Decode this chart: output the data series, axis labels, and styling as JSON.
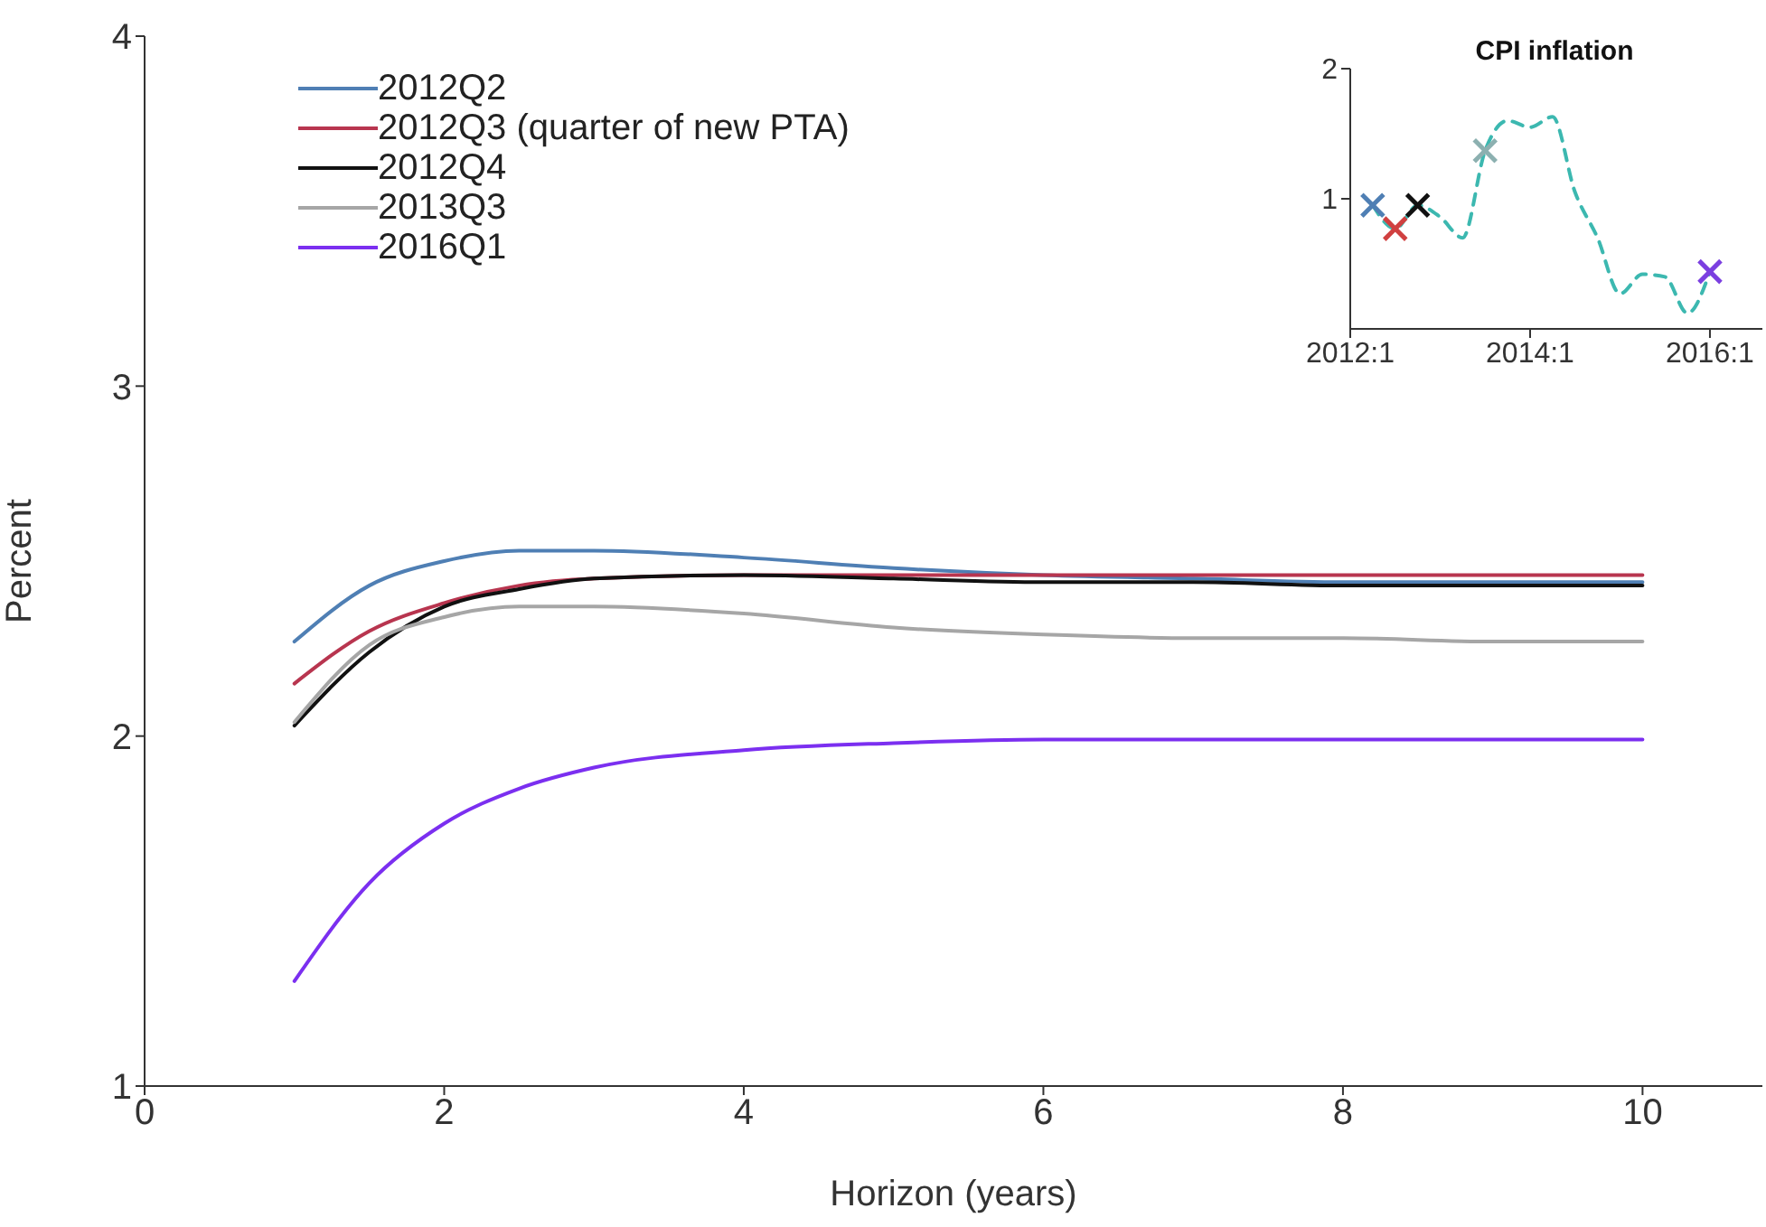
{
  "chart_data": [
    {
      "type": "line",
      "xlabel": "Horizon (years)",
      "ylabel": "Percent",
      "x": [
        1,
        1.5,
        2,
        2.5,
        3,
        4,
        5,
        6,
        7,
        8,
        9,
        10
      ],
      "xlim": [
        0,
        10.8
      ],
      "xticks": [
        0,
        2,
        4,
        6,
        8,
        10
      ],
      "ylim": [
        1,
        4
      ],
      "yticks": [
        1,
        2,
        3,
        4
      ],
      "grid": false,
      "legend": "top left",
      "marker": "none",
      "line_style": "solid",
      "series": [
        {
          "name": "2012Q2",
          "color": "#4f7fb4",
          "values": [
            2.27,
            2.43,
            2.5,
            2.53,
            2.53,
            2.51,
            2.48,
            2.46,
            2.45,
            2.44,
            2.44,
            2.44
          ]
        },
        {
          "name": "2012Q3 (quarter of new PTA)",
          "color": "#b8354f",
          "values": [
            2.15,
            2.3,
            2.38,
            2.43,
            2.45,
            2.46,
            2.46,
            2.46,
            2.46,
            2.46,
            2.46,
            2.46
          ]
        },
        {
          "name": "2012Q4",
          "color": "#111111",
          "values": [
            2.03,
            2.24,
            2.37,
            2.42,
            2.45,
            2.46,
            2.45,
            2.44,
            2.44,
            2.43,
            2.43,
            2.43
          ]
        },
        {
          "name": "2013Q3",
          "color": "#a6a6a6",
          "values": [
            2.04,
            2.26,
            2.34,
            2.37,
            2.37,
            2.35,
            2.31,
            2.29,
            2.28,
            2.28,
            2.27,
            2.27
          ]
        },
        {
          "name": "2016Q1",
          "color": "#7b2ff0",
          "values": [
            1.3,
            1.58,
            1.75,
            1.85,
            1.91,
            1.96,
            1.98,
            1.99,
            1.99,
            1.99,
            1.99,
            1.99
          ]
        }
      ]
    },
    {
      "type": "line",
      "title": "CPI inflation",
      "xlim": [
        "2012-01",
        "2016-08"
      ],
      "xticks": [
        {
          "value": "2012-01",
          "label": "2012:1"
        },
        {
          "value": "2014-01",
          "label": "2014:1"
        },
        {
          "value": "2016-01",
          "label": "2016:1"
        }
      ],
      "ylim": [
        0,
        2
      ],
      "yticks": [
        1,
        2
      ],
      "grid": false,
      "legend": false,
      "series": [
        {
          "color": "#3cb8b0",
          "marker": "none",
          "line_style": "dashed",
          "x": [
            "2012-04",
            "2012-07",
            "2012-10",
            "2013-01",
            "2013-04",
            "2013-07",
            "2013-10",
            "2014-01",
            "2014-04",
            "2014-07",
            "2014-10",
            "2015-01",
            "2015-04",
            "2015-07",
            "2015-10",
            "2016-01"
          ],
          "values": [
            0.95,
            0.77,
            0.95,
            0.86,
            0.7,
            1.37,
            1.6,
            1.55,
            1.63,
            1.05,
            0.7,
            0.27,
            0.42,
            0.4,
            0.12,
            0.44
          ]
        },
        {
          "type": "scatter",
          "marker": "cross",
          "x": [
            "2012-04",
            "2012-07",
            "2012-10",
            "2013-07",
            "2016-01"
          ],
          "values": [
            0.95,
            0.77,
            0.95,
            1.37,
            0.44
          ],
          "colors": [
            "#4f7fb4",
            "#d04040",
            "#111111",
            "#8cb0b0",
            "#7b3fe0"
          ]
        }
      ]
    }
  ]
}
